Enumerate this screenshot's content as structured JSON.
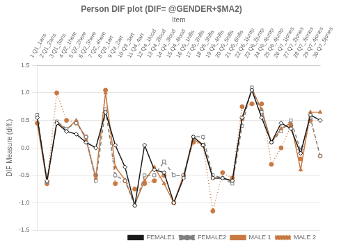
{
  "chart_data": {
    "type": "line",
    "title": "Person DIF plot (DIF= @GENDER+$MA2)",
    "xlabel": "Item",
    "ylabel": "DIF Measure (diff.)",
    "categories": [
      "1 Q1_1ans",
      "2 Q1_2ans",
      "3 Q1_3ans",
      "4 Q2_1here",
      "5 Q2_2here",
      "6 Q2_3here",
      "7 Q2_4here",
      "8 Q3_1art",
      "9 Q3_2art",
      "10 Q3_3art",
      "11 Q4_4art",
      "12 Q4_1food",
      "13 Q4_2food",
      "14 Q4_3food",
      "15 Q4_4food",
      "16 Q5_1hills",
      "17 Q5_2hills",
      "18 Q5_3hills",
      "19 Q5_4hills",
      "20 Q5_5hills",
      "21 Q5_6hills",
      "22 Q6_1jump",
      "23 Q6_2jump",
      "24 Q6_4jump",
      "25 Q6_4jump",
      "26 Q7_1jones",
      "27 Q7_2jones",
      "28 Q7_3jones",
      "29 Q7_4jones",
      "30 Q7_5jones"
    ],
    "series": [
      {
        "name": "FEMALE1",
        "color": "#1a1a1a",
        "marker": "diamond",
        "line_style": "solid",
        "values": [
          0.55,
          -0.6,
          0.45,
          0.3,
          0.25,
          0.1,
          0.0,
          0.65,
          0.05,
          -0.35,
          -1.05,
          0.05,
          -0.4,
          -0.45,
          -1.0,
          -0.55,
          0.2,
          0.05,
          -0.55,
          -0.55,
          -0.6,
          0.55,
          1.05,
          0.55,
          0.1,
          0.45,
          0.35,
          -0.1,
          0.6,
          0.5
        ]
      },
      {
        "name": "FEMALE2",
        "color": "#808080",
        "marker": "square",
        "line_style": "dashed",
        "values": [
          0.6,
          -0.62,
          0.48,
          0.35,
          0.45,
          0.2,
          -0.6,
          0.7,
          -0.5,
          -0.6,
          -1.05,
          -0.5,
          -0.5,
          -0.25,
          -0.5,
          -0.5,
          0.2,
          0.2,
          -0.5,
          -0.55,
          -0.65,
          0.4,
          1.1,
          0.65,
          0.1,
          0.3,
          0.5,
          -0.05,
          0.55,
          -0.15
        ]
      },
      {
        "name": "MALE 1",
        "color": "#c87941",
        "marker": "triangle",
        "line_style": "solid",
        "values": [
          0.45,
          -0.63,
          0.47,
          0.33,
          0.5,
          0.15,
          -0.55,
          1.0,
          -0.35,
          -0.58,
          -1.03,
          -0.6,
          -0.35,
          -0.65,
          -1.0,
          -0.5,
          0.15,
          0.05,
          -0.55,
          -0.55,
          -0.6,
          0.52,
          1.07,
          0.7,
          0.1,
          0.35,
          0.45,
          -0.4,
          0.65,
          0.65
        ]
      },
      {
        "name": "MALE 2",
        "color": "#c87941",
        "marker": "circle",
        "line_style": "dotted",
        "values": [
          0.45,
          -0.65,
          1.0,
          0.5,
          0.45,
          0.2,
          -0.5,
          1.05,
          -0.65,
          -0.6,
          -0.75,
          -0.65,
          -0.6,
          -0.5,
          -1.0,
          -0.5,
          0.1,
          0.05,
          -1.15,
          -0.45,
          -0.55,
          0.75,
          0.8,
          0.8,
          -0.3,
          0.0,
          0.4,
          -0.2,
          0.5,
          -0.15
        ]
      }
    ],
    "ylim": [
      -1.5,
      1.5
    ],
    "yticks": [
      -1.5,
      {
        "value": -1.0,
        "label": "-1.0"
      },
      -0.5,
      {
        "value": 0.0,
        "label": "0.0"
      },
      0.5,
      {
        "value": 1.0,
        "label": "1.0"
      },
      1.5
    ],
    "grid": "y",
    "legend": "lower right"
  }
}
